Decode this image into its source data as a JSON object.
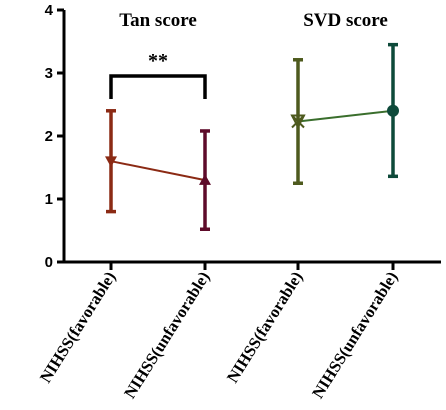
{
  "chart_data": {
    "type": "line",
    "ylim": [
      0,
      4
    ],
    "yticks": [
      0,
      1,
      2,
      3,
      4
    ],
    "categories": [
      "NIHSS(favorable)",
      "NIHSS(unfavorable)",
      "NIHSS(favorable)",
      "NIHSS(unfavorable)"
    ],
    "grid": false,
    "panels": [
      {
        "title": "Tan score",
        "line_color": "#8B2A14",
        "significance": "**",
        "points": [
          {
            "category_index": 0,
            "mean": 1.6,
            "lower": 0.8,
            "upper": 2.4,
            "color": "#8B2A14",
            "marker": "triangle-down"
          },
          {
            "category_index": 1,
            "mean": 1.3,
            "lower": 0.52,
            "upper": 2.08,
            "color": "#5E0B2A",
            "marker": "triangle-up"
          }
        ]
      },
      {
        "title": "SVD score",
        "line_color": "#3A6E2C",
        "significance": "",
        "points": [
          {
            "category_index": 2,
            "mean": 2.23,
            "lower": 1.25,
            "upper": 3.21,
            "color": "#4E5A1E",
            "marker": "x-triangle"
          },
          {
            "category_index": 3,
            "mean": 2.4,
            "lower": 1.36,
            "upper": 3.45,
            "color": "#0E4A3A",
            "marker": "circle"
          }
        ]
      }
    ]
  }
}
